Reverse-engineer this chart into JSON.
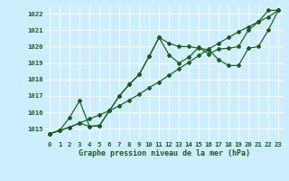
{
  "xlabel": "Graphe pression niveau de la mer (hPa)",
  "bg_color": "#cceeff",
  "grid_color": "#ffffff",
  "line_color": "#1a5c1a",
  "ylim": [
    1014.25,
    1022.5
  ],
  "xlim": [
    -0.5,
    23.5
  ],
  "yticks": [
    1015,
    1016,
    1017,
    1018,
    1019,
    1020,
    1021,
    1022
  ],
  "xticks": [
    0,
    1,
    2,
    3,
    4,
    5,
    6,
    7,
    8,
    9,
    10,
    11,
    12,
    13,
    14,
    15,
    16,
    17,
    18,
    19,
    20,
    21,
    22,
    23
  ],
  "xtick_labels": [
    "0",
    "1",
    "2",
    "3",
    "4",
    "5",
    "6",
    "7",
    "8",
    "9",
    "10",
    "11",
    "12",
    "13",
    "14",
    "15",
    "16",
    "17",
    "18",
    "19",
    "20",
    "21",
    "22",
    "23"
  ],
  "line1_x": [
    0,
    1,
    2,
    3,
    4,
    5,
    6,
    7,
    8,
    9,
    10,
    11,
    12,
    13,
    14,
    15,
    16,
    17,
    18,
    19,
    20,
    21,
    22,
    23
  ],
  "line1_y": [
    1014.7,
    1014.9,
    1015.1,
    1015.35,
    1015.6,
    1015.85,
    1016.1,
    1016.4,
    1016.75,
    1017.1,
    1017.5,
    1017.85,
    1018.25,
    1018.65,
    1019.05,
    1019.45,
    1019.85,
    1020.2,
    1020.55,
    1020.9,
    1021.2,
    1021.5,
    1021.8,
    1022.2
  ],
  "line2_x": [
    0,
    1,
    2,
    3,
    4,
    5,
    6,
    7,
    8,
    9,
    10,
    11,
    12,
    13,
    14,
    15,
    16,
    17,
    18,
    19,
    20,
    21,
    22,
    23
  ],
  "line2_y": [
    1014.7,
    1014.9,
    1015.7,
    1016.7,
    1015.15,
    1015.2,
    1016.1,
    1017.0,
    1017.7,
    1018.3,
    1019.4,
    1020.55,
    1019.5,
    1019.0,
    1019.35,
    1019.95,
    1019.55,
    1019.85,
    1019.9,
    1020.0,
    1021.0,
    1021.5,
    1022.2,
    1022.2
  ],
  "line3_x": [
    0,
    1,
    2,
    3,
    4,
    5,
    6,
    7,
    8,
    9,
    10,
    11,
    12,
    13,
    14,
    15,
    16,
    17,
    18,
    19,
    20,
    21,
    22,
    23
  ],
  "line3_y": [
    1014.7,
    1014.9,
    1015.1,
    1015.35,
    1015.15,
    1015.2,
    1016.1,
    1017.0,
    1017.7,
    1018.3,
    1019.4,
    1020.55,
    1020.2,
    1020.0,
    1020.0,
    1019.9,
    1019.8,
    1019.2,
    1018.85,
    1018.85,
    1019.9,
    1020.0,
    1021.0,
    1022.2
  ]
}
